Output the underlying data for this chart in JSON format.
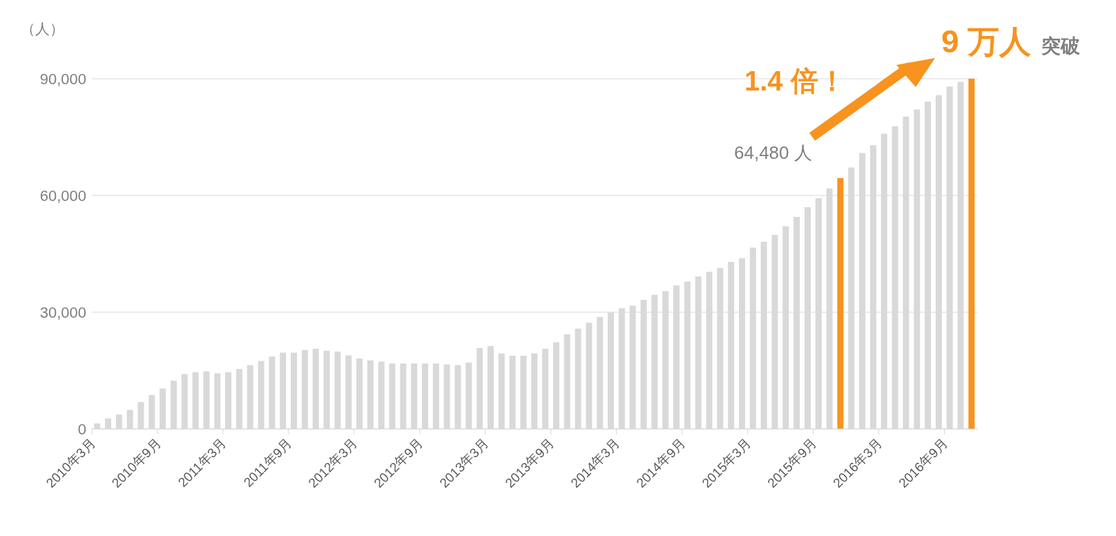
{
  "chart_data": {
    "type": "bar",
    "ylabel": "（人）",
    "categories": [
      "2010年3月",
      null,
      null,
      null,
      null,
      null,
      "2010年9月",
      null,
      null,
      null,
      null,
      null,
      "2011年3月",
      null,
      null,
      null,
      null,
      null,
      "2011年9月",
      null,
      null,
      null,
      null,
      null,
      "2012年3月",
      null,
      null,
      null,
      null,
      null,
      "2012年9月",
      null,
      null,
      null,
      null,
      null,
      "2013年3月",
      null,
      null,
      null,
      null,
      null,
      "2013年9月",
      null,
      null,
      null,
      null,
      null,
      "2014年3月",
      null,
      null,
      null,
      null,
      null,
      "2014年9月",
      null,
      null,
      null,
      null,
      null,
      "2015年3月",
      null,
      null,
      null,
      null,
      null,
      "2015年9月",
      null,
      null,
      null,
      null,
      null,
      "2016年3月",
      null,
      null,
      null,
      null,
      null,
      "2016年9月",
      null,
      null
    ],
    "values": [
      1400,
      2700,
      3700,
      4900,
      6900,
      8700,
      10400,
      12400,
      14100,
      14600,
      14800,
      14300,
      14600,
      15400,
      16400,
      17500,
      18600,
      19600,
      19600,
      20300,
      20600,
      20100,
      19900,
      18900,
      18100,
      17600,
      17300,
      16800,
      16800,
      16800,
      16800,
      16800,
      16600,
      16400,
      17100,
      20800,
      21300,
      19400,
      18800,
      18800,
      19400,
      20600,
      22300,
      24300,
      25800,
      27300,
      28800,
      29900,
      31000,
      31700,
      33200,
      34500,
      35400,
      36900,
      37900,
      39200,
      40400,
      41400,
      42900,
      43900,
      46600,
      48100,
      49900,
      52100,
      54500,
      57000,
      59300,
      61800,
      64480,
      67200,
      70900,
      72900,
      75900,
      77800,
      80300,
      82100,
      84100,
      85800,
      88000,
      89200,
      90000
    ],
    "colors": [
      "#d9d9d9",
      "#d9d9d9",
      "#d9d9d9",
      "#d9d9d9",
      "#d9d9d9",
      "#d9d9d9",
      "#d9d9d9",
      "#d9d9d9",
      "#d9d9d9",
      "#d9d9d9",
      "#d9d9d9",
      "#d9d9d9",
      "#d9d9d9",
      "#d9d9d9",
      "#d9d9d9",
      "#d9d9d9",
      "#d9d9d9",
      "#d9d9d9",
      "#d9d9d9",
      "#d9d9d9",
      "#d9d9d9",
      "#d9d9d9",
      "#d9d9d9",
      "#d9d9d9",
      "#d9d9d9",
      "#d9d9d9",
      "#d9d9d9",
      "#d9d9d9",
      "#d9d9d9",
      "#d9d9d9",
      "#d9d9d9",
      "#d9d9d9",
      "#d9d9d9",
      "#d9d9d9",
      "#d9d9d9",
      "#d9d9d9",
      "#d9d9d9",
      "#d9d9d9",
      "#d9d9d9",
      "#d9d9d9",
      "#d9d9d9",
      "#d9d9d9",
      "#d9d9d9",
      "#d9d9d9",
      "#d9d9d9",
      "#d9d9d9",
      "#d9d9d9",
      "#d9d9d9",
      "#d9d9d9",
      "#d9d9d9",
      "#d9d9d9",
      "#d9d9d9",
      "#d9d9d9",
      "#d9d9d9",
      "#d9d9d9",
      "#d9d9d9",
      "#d9d9d9",
      "#d9d9d9",
      "#d9d9d9",
      "#d9d9d9",
      "#d9d9d9",
      "#d9d9d9",
      "#d9d9d9",
      "#d9d9d9",
      "#d9d9d9",
      "#d9d9d9",
      "#d9d9d9",
      "#d9d9d9",
      "#f7931e",
      "#d9d9d9",
      "#d9d9d9",
      "#d9d9d9",
      "#d9d9d9",
      "#d9d9d9",
      "#d9d9d9",
      "#d9d9d9",
      "#d9d9d9",
      "#d9d9d9",
      "#d9d9d9",
      "#d9d9d9",
      "#f7931e"
    ],
    "annotations": [
      "1.4 倍！",
      "9 万人",
      "突破",
      "64,480 人"
    ],
    "ylim": [
      0,
      90000
    ],
    "yticks": [
      {
        "value": 0,
        "label": "0"
      },
      {
        "value": 30000,
        "label": "30,000"
      },
      {
        "value": 60000,
        "label": "60,000"
      },
      {
        "value": 90000,
        "label": "90,000"
      }
    ],
    "grid": "y"
  }
}
